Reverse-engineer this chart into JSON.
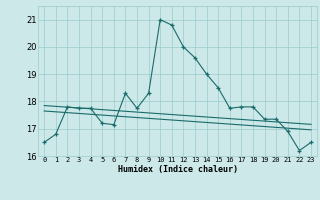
{
  "xlabel": "Humidex (Indice chaleur)",
  "bg_color": "#cce8e8",
  "grid_color": "#99cccc",
  "line_color": "#1a6b6b",
  "x_values": [
    0,
    1,
    2,
    3,
    4,
    5,
    6,
    7,
    8,
    9,
    10,
    11,
    12,
    13,
    14,
    15,
    16,
    17,
    18,
    19,
    20,
    21,
    22,
    23
  ],
  "y_main": [
    16.5,
    16.8,
    17.8,
    17.75,
    17.75,
    17.2,
    17.15,
    18.3,
    17.75,
    18.3,
    21.0,
    20.8,
    20.0,
    19.6,
    19.0,
    18.5,
    17.75,
    17.8,
    17.8,
    17.35,
    17.35,
    16.9,
    16.2,
    16.5
  ],
  "y_trend1": [
    17.85,
    17.82,
    17.79,
    17.76,
    17.73,
    17.7,
    17.67,
    17.64,
    17.61,
    17.58,
    17.55,
    17.52,
    17.49,
    17.46,
    17.43,
    17.4,
    17.37,
    17.34,
    17.31,
    17.28,
    17.25,
    17.22,
    17.19,
    17.16
  ],
  "y_trend2": [
    17.65,
    17.62,
    17.59,
    17.56,
    17.53,
    17.5,
    17.47,
    17.44,
    17.41,
    17.38,
    17.35,
    17.32,
    17.29,
    17.26,
    17.23,
    17.2,
    17.17,
    17.14,
    17.11,
    17.08,
    17.05,
    17.02,
    16.99,
    16.96
  ],
  "ylim": [
    16.0,
    21.5
  ],
  "yticks": [
    16,
    17,
    18,
    19,
    20,
    21
  ],
  "xlim": [
    -0.5,
    23.5
  ],
  "xticks": [
    0,
    1,
    2,
    3,
    4,
    5,
    6,
    7,
    8,
    9,
    10,
    11,
    12,
    13,
    14,
    15,
    16,
    17,
    18,
    19,
    20,
    21,
    22,
    23
  ]
}
